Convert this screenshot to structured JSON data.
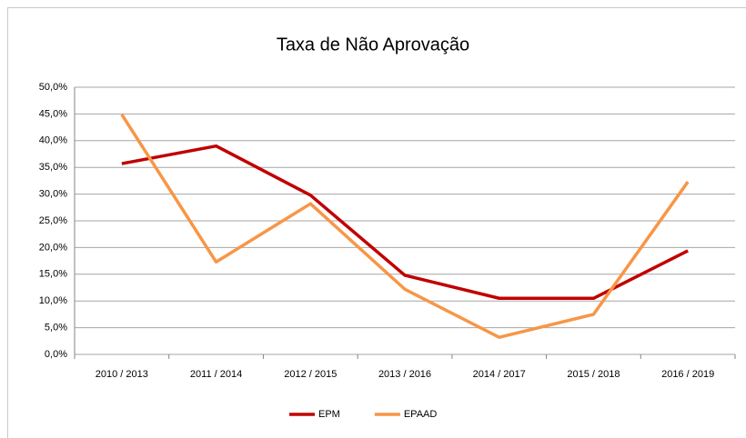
{
  "chart_data": {
    "type": "line",
    "title": "Taxa de Não Aprovação",
    "categories": [
      "2010 / 2013",
      "2011 / 2014",
      "2012 / 2015",
      "2013 / 2016",
      "2014 / 2017",
      "2015 / 2018",
      "2016 / 2019"
    ],
    "series": [
      {
        "name": "EPM",
        "color": "#c00000",
        "values": [
          35.7,
          39.0,
          29.8,
          14.8,
          10.5,
          10.5,
          19.4
        ]
      },
      {
        "name": "EPAAD",
        "color": "#f79646",
        "values": [
          44.9,
          17.3,
          28.2,
          12.2,
          3.2,
          7.5,
          32.3
        ]
      }
    ],
    "ylim": [
      0,
      50
    ],
    "yticks": [
      {
        "value": 0,
        "label": "0,0%"
      },
      {
        "value": 5,
        "label": "5,0%"
      },
      {
        "value": 10,
        "label": "10,0%"
      },
      {
        "value": 15,
        "label": "15,0%"
      },
      {
        "value": 20,
        "label": "20,0%"
      },
      {
        "value": 25,
        "label": "25,0%"
      },
      {
        "value": 30,
        "label": "30,0%"
      },
      {
        "value": 35,
        "label": "35,0%"
      },
      {
        "value": 40,
        "label": "40,0%"
      },
      {
        "value": 45,
        "label": "45,0%"
      },
      {
        "value": 50,
        "label": "50,0%"
      }
    ],
    "grid": true,
    "legend": "bottom"
  }
}
